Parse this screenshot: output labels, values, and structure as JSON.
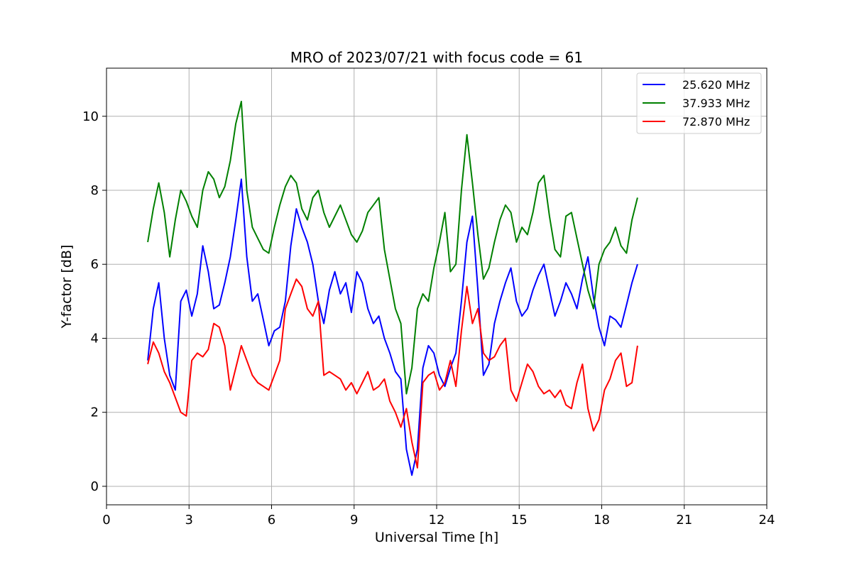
{
  "chart_data": {
    "type": "line",
    "title": "MRO of 2023/07/21 with focus code = 61",
    "xlabel": "Universal Time [h]",
    "ylabel": "Y-factor [dB]",
    "xlim": [
      0,
      24
    ],
    "ylim": [
      -0.5,
      11.3
    ],
    "xticks": [
      0,
      3,
      6,
      9,
      12,
      15,
      18,
      21,
      24
    ],
    "yticks": [
      0,
      2,
      4,
      6,
      8,
      10
    ],
    "grid": true,
    "legend_position": "top-right",
    "series": [
      {
        "name": "25.620 MHz",
        "color": "#0000ff",
        "x": [
          1.5,
          1.7,
          1.9,
          2.1,
          2.3,
          2.5,
          2.7,
          2.9,
          3.1,
          3.3,
          3.5,
          3.7,
          3.9,
          4.1,
          4.3,
          4.5,
          4.7,
          4.9,
          5.1,
          5.3,
          5.5,
          5.7,
          5.9,
          6.1,
          6.3,
          6.5,
          6.7,
          6.9,
          7.1,
          7.3,
          7.5,
          7.7,
          7.9,
          8.1,
          8.3,
          8.5,
          8.7,
          8.9,
          9.1,
          9.3,
          9.5,
          9.7,
          9.9,
          10.1,
          10.3,
          10.5,
          10.7,
          10.9,
          11.1,
          11.3,
          11.5,
          11.7,
          11.9,
          12.1,
          12.3,
          12.5,
          12.7,
          12.9,
          13.1,
          13.3,
          13.5,
          13.7,
          13.9,
          14.1,
          14.3,
          14.5,
          14.7,
          14.9,
          15.1,
          15.3,
          15.5,
          15.7,
          15.9,
          16.1,
          16.3,
          16.5,
          16.7,
          16.9,
          17.1,
          17.3,
          17.5,
          17.7,
          17.9,
          18.1,
          18.3,
          18.5,
          18.7,
          18.9,
          19.1,
          19.3
        ],
        "y": [
          3.4,
          4.8,
          5.5,
          4.0,
          3.0,
          2.6,
          5.0,
          5.3,
          4.6,
          5.2,
          6.5,
          5.8,
          4.8,
          4.9,
          5.5,
          6.2,
          7.2,
          8.3,
          6.2,
          5.0,
          5.2,
          4.5,
          3.8,
          4.2,
          4.3,
          5.0,
          6.5,
          7.5,
          7.0,
          6.6,
          6.0,
          5.0,
          4.4,
          5.3,
          5.8,
          5.2,
          5.5,
          4.7,
          5.8,
          5.5,
          4.8,
          4.4,
          4.6,
          4.0,
          3.6,
          3.1,
          2.9,
          1.0,
          0.3,
          1.0,
          3.2,
          3.8,
          3.6,
          3.0,
          2.7,
          3.2,
          3.6,
          5.0,
          6.6,
          7.3,
          5.3,
          3.0,
          3.3,
          4.4,
          5.0,
          5.5,
          5.9,
          5.0,
          4.6,
          4.8,
          5.3,
          5.7,
          6.0,
          5.3,
          4.6,
          5.0,
          5.5,
          5.2,
          4.8,
          5.6,
          6.2,
          5.1,
          4.3,
          3.8,
          4.6,
          4.5,
          4.3,
          4.9,
          5.5,
          6.0
        ]
      },
      {
        "name": "37.933 MHz",
        "color": "#008000",
        "x": [
          1.5,
          1.7,
          1.9,
          2.1,
          2.3,
          2.5,
          2.7,
          2.9,
          3.1,
          3.3,
          3.5,
          3.7,
          3.9,
          4.1,
          4.3,
          4.5,
          4.7,
          4.9,
          5.1,
          5.3,
          5.5,
          5.7,
          5.9,
          6.1,
          6.3,
          6.5,
          6.7,
          6.9,
          7.1,
          7.3,
          7.5,
          7.7,
          7.9,
          8.1,
          8.3,
          8.5,
          8.7,
          8.9,
          9.1,
          9.3,
          9.5,
          9.7,
          9.9,
          10.1,
          10.3,
          10.5,
          10.7,
          10.9,
          11.1,
          11.3,
          11.5,
          11.7,
          11.9,
          12.1,
          12.3,
          12.5,
          12.7,
          12.9,
          13.1,
          13.3,
          13.5,
          13.7,
          13.9,
          14.1,
          14.3,
          14.5,
          14.7,
          14.9,
          15.1,
          15.3,
          15.5,
          15.7,
          15.9,
          16.1,
          16.3,
          16.5,
          16.7,
          16.9,
          17.1,
          17.3,
          17.5,
          17.7,
          17.9,
          18.1,
          18.3,
          18.5,
          18.7,
          18.9,
          19.1,
          19.3
        ],
        "y": [
          6.6,
          7.5,
          8.2,
          7.4,
          6.2,
          7.2,
          8.0,
          7.7,
          7.3,
          7.0,
          8.0,
          8.5,
          8.3,
          7.8,
          8.1,
          8.8,
          9.8,
          10.4,
          8.0,
          7.0,
          6.7,
          6.4,
          6.3,
          7.0,
          7.6,
          8.1,
          8.4,
          8.2,
          7.5,
          7.2,
          7.8,
          8.0,
          7.4,
          7.0,
          7.3,
          7.6,
          7.2,
          6.8,
          6.6,
          6.9,
          7.4,
          7.6,
          7.8,
          6.4,
          5.6,
          4.8,
          4.4,
          2.5,
          3.2,
          4.8,
          5.2,
          5.0,
          5.9,
          6.6,
          7.4,
          5.8,
          6.0,
          8.0,
          9.5,
          8.2,
          6.8,
          5.6,
          5.9,
          6.6,
          7.2,
          7.6,
          7.4,
          6.6,
          7.0,
          6.8,
          7.4,
          8.2,
          8.4,
          7.3,
          6.4,
          6.2,
          7.3,
          7.4,
          6.7,
          6.0,
          5.3,
          4.8,
          6.0,
          6.4,
          6.6,
          7.0,
          6.5,
          6.3,
          7.2,
          7.8
        ]
      },
      {
        "name": "72.870 MHz",
        "color": "#ff0000",
        "x": [
          1.5,
          1.7,
          1.9,
          2.1,
          2.3,
          2.5,
          2.7,
          2.9,
          3.1,
          3.3,
          3.5,
          3.7,
          3.9,
          4.1,
          4.3,
          4.5,
          4.7,
          4.9,
          5.1,
          5.3,
          5.5,
          5.7,
          5.9,
          6.1,
          6.3,
          6.5,
          6.7,
          6.9,
          7.1,
          7.3,
          7.5,
          7.7,
          7.9,
          8.1,
          8.3,
          8.5,
          8.7,
          8.9,
          9.1,
          9.3,
          9.5,
          9.7,
          9.9,
          10.1,
          10.3,
          10.5,
          10.7,
          10.9,
          11.1,
          11.3,
          11.5,
          11.7,
          11.9,
          12.1,
          12.3,
          12.5,
          12.7,
          12.9,
          13.1,
          13.3,
          13.5,
          13.7,
          13.9,
          14.1,
          14.3,
          14.5,
          14.7,
          14.9,
          15.1,
          15.3,
          15.5,
          15.7,
          15.9,
          16.1,
          16.3,
          16.5,
          16.7,
          16.9,
          17.1,
          17.3,
          17.5,
          17.7,
          17.9,
          18.1,
          18.3,
          18.5,
          18.7,
          18.9,
          19.1,
          19.3
        ],
        "y": [
          3.3,
          3.9,
          3.6,
          3.1,
          2.8,
          2.4,
          2.0,
          1.9,
          3.4,
          3.6,
          3.5,
          3.7,
          4.4,
          4.3,
          3.8,
          2.6,
          3.2,
          3.8,
          3.4,
          3.0,
          2.8,
          2.7,
          2.6,
          3.0,
          3.4,
          4.8,
          5.2,
          5.6,
          5.4,
          4.8,
          4.6,
          5.0,
          3.0,
          3.1,
          3.0,
          2.9,
          2.6,
          2.8,
          2.5,
          2.8,
          3.1,
          2.6,
          2.7,
          2.9,
          2.3,
          2.0,
          1.6,
          2.1,
          1.2,
          0.5,
          2.8,
          3.0,
          3.1,
          2.6,
          2.8,
          3.4,
          2.7,
          4.2,
          5.4,
          4.4,
          4.8,
          3.6,
          3.4,
          3.5,
          3.8,
          4.0,
          2.6,
          2.3,
          2.8,
          3.3,
          3.1,
          2.7,
          2.5,
          2.6,
          2.4,
          2.6,
          2.2,
          2.1,
          2.8,
          3.3,
          2.1,
          1.5,
          1.8,
          2.6,
          2.9,
          3.4,
          3.6,
          2.7,
          2.8,
          3.8
        ]
      }
    ]
  }
}
